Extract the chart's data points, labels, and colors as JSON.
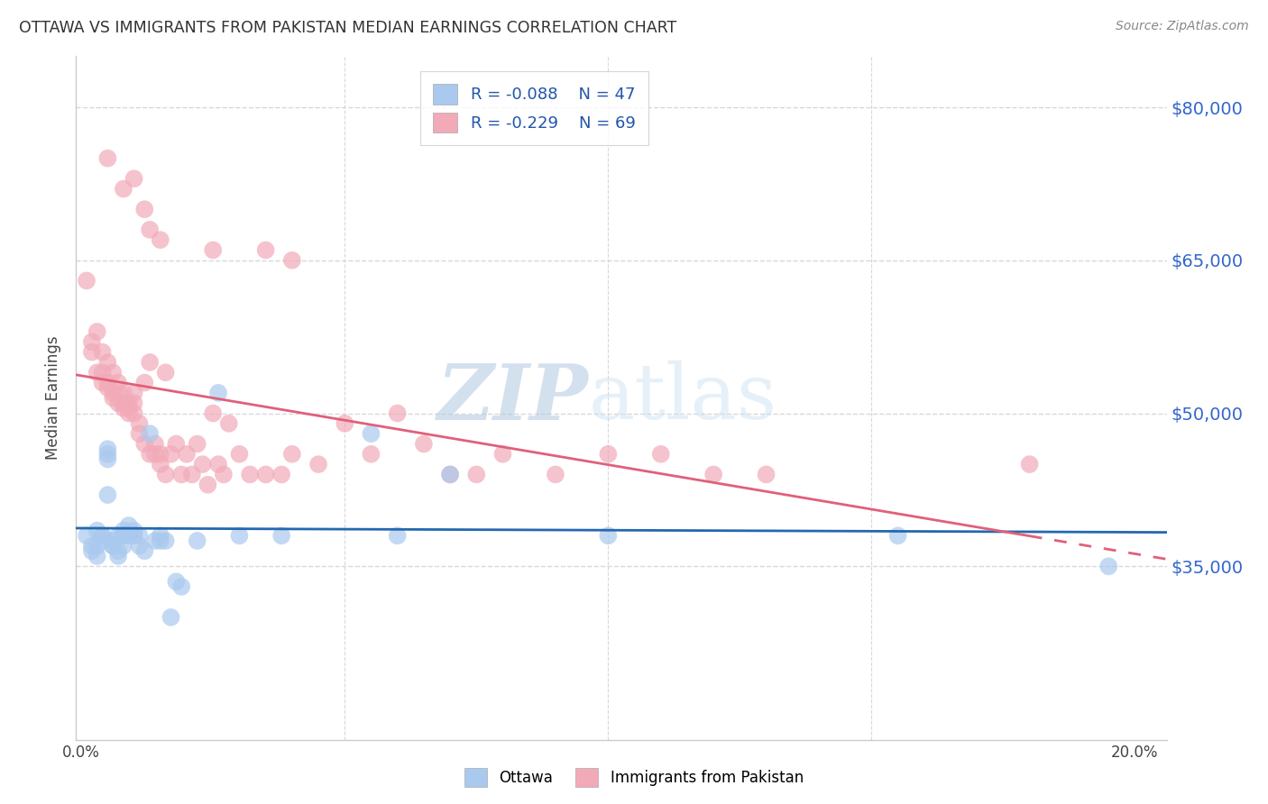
{
  "title": "OTTAWA VS IMMIGRANTS FROM PAKISTAN MEDIAN EARNINGS CORRELATION CHART",
  "source": "Source: ZipAtlas.com",
  "ylabel": "Median Earnings",
  "yticks": [
    35000,
    50000,
    65000,
    80000
  ],
  "ytick_labels": [
    "$35,000",
    "$50,000",
    "$65,000",
    "$80,000"
  ],
  "y_min": 18000,
  "y_max": 85000,
  "x_min": -0.001,
  "x_max": 0.206,
  "watermark_zip": "ZIP",
  "watermark_atlas": "atlas",
  "ottawa_color": "#aac9ee",
  "pakistan_color": "#f2aab8",
  "blue_line_color": "#2368b0",
  "pink_line_color": "#e0607a",
  "grid_color": "#d8d8d8",
  "ottawa_points_x": [
    0.001,
    0.002,
    0.002,
    0.003,
    0.003,
    0.003,
    0.004,
    0.004,
    0.004,
    0.005,
    0.005,
    0.005,
    0.005,
    0.006,
    0.006,
    0.006,
    0.007,
    0.007,
    0.007,
    0.008,
    0.008,
    0.008,
    0.009,
    0.009,
    0.01,
    0.01,
    0.011,
    0.011,
    0.012,
    0.013,
    0.014,
    0.015,
    0.015,
    0.016,
    0.017,
    0.018,
    0.019,
    0.022,
    0.026,
    0.03,
    0.038,
    0.055,
    0.06,
    0.07,
    0.1,
    0.155,
    0.195
  ],
  "ottawa_points_y": [
    38000,
    37000,
    36500,
    37000,
    36000,
    38500,
    38000,
    37500,
    38000,
    46500,
    46000,
    45500,
    42000,
    37500,
    37000,
    37000,
    36500,
    36000,
    38000,
    38500,
    38000,
    37000,
    39000,
    38000,
    38500,
    38000,
    38000,
    37000,
    36500,
    48000,
    37500,
    38000,
    37500,
    37500,
    30000,
    33500,
    33000,
    37500,
    52000,
    38000,
    38000,
    48000,
    38000,
    44000,
    38000,
    38000,
    35000
  ],
  "pakistan_points_x": [
    0.001,
    0.002,
    0.002,
    0.003,
    0.003,
    0.004,
    0.004,
    0.004,
    0.005,
    0.005,
    0.005,
    0.006,
    0.006,
    0.006,
    0.007,
    0.007,
    0.007,
    0.008,
    0.008,
    0.008,
    0.009,
    0.009,
    0.009,
    0.01,
    0.01,
    0.01,
    0.011,
    0.011,
    0.012,
    0.012,
    0.013,
    0.013,
    0.014,
    0.014,
    0.015,
    0.015,
    0.016,
    0.016,
    0.017,
    0.018,
    0.019,
    0.02,
    0.021,
    0.022,
    0.023,
    0.024,
    0.025,
    0.026,
    0.027,
    0.028,
    0.03,
    0.032,
    0.035,
    0.038,
    0.04,
    0.045,
    0.05,
    0.055,
    0.06,
    0.065,
    0.07,
    0.075,
    0.08,
    0.09,
    0.1,
    0.11,
    0.12,
    0.13,
    0.18
  ],
  "pakistan_points_y": [
    63000,
    57000,
    56000,
    58000,
    54000,
    56000,
    54000,
    53000,
    55000,
    53000,
    52500,
    54000,
    52000,
    51500,
    53000,
    52000,
    51000,
    52000,
    51000,
    50500,
    51000,
    50500,
    50000,
    52000,
    51000,
    50000,
    49000,
    48000,
    53000,
    47000,
    55000,
    46000,
    47000,
    46000,
    46000,
    45000,
    54000,
    44000,
    46000,
    47000,
    44000,
    46000,
    44000,
    47000,
    45000,
    43000,
    50000,
    45000,
    44000,
    49000,
    46000,
    44000,
    44000,
    44000,
    46000,
    45000,
    49000,
    46000,
    50000,
    47000,
    44000,
    44000,
    46000,
    44000,
    46000,
    46000,
    44000,
    44000,
    45000
  ],
  "pakistan_high_x": [
    0.005,
    0.008,
    0.01,
    0.012,
    0.013,
    0.015,
    0.025,
    0.035,
    0.04
  ],
  "pakistan_high_y": [
    75000,
    72000,
    73000,
    70000,
    68000,
    67000,
    66000,
    66000,
    65000
  ]
}
